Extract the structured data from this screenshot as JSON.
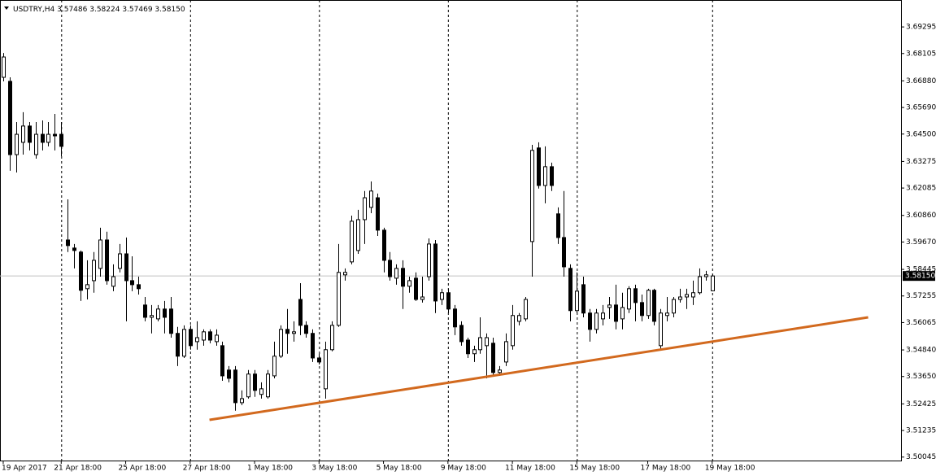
{
  "chart_data": {
    "type": "candlestick",
    "title": "USDTRY,H4",
    "last_labels": [
      "3.57486",
      "3.58224",
      "3.57469",
      "3.58150"
    ],
    "open": [
      3.6704,
      3.6686,
      3.6358,
      3.6413,
      3.6486,
      3.6358,
      3.6449,
      3.6413,
      3.6449,
      3.6449,
      3.5976,
      3.594,
      3.5922,
      3.5758,
      3.5794,
      3.5849,
      3.5976,
      3.5769,
      3.5849,
      3.5914,
      3.5794,
      3.5776,
      3.5685,
      3.563,
      3.5623,
      3.5667,
      3.5667,
      3.5558,
      3.5456,
      3.5576,
      3.5521,
      3.5528,
      3.5565,
      3.5521,
      3.5503,
      3.5394,
      3.5394,
      3.5248,
      3.5274,
      3.5376,
      3.5285,
      3.5274,
      3.5368,
      3.5456,
      3.5576,
      3.5558,
      3.571,
      3.5594,
      3.5558,
      3.5448,
      3.531,
      3.5485,
      3.5594,
      3.582,
      3.5878,
      3.5929,
      3.6067,
      3.6122,
      3.6165,
      3.602,
      3.5885,
      3.5805,
      3.5849,
      3.5769,
      3.5805,
      3.571,
      3.5812,
      3.5958,
      3.571,
      3.574,
      3.5667,
      3.5594,
      3.5528,
      3.5467,
      3.5485,
      3.5503,
      3.5514,
      3.5383,
      3.543,
      3.5503,
      3.5612,
      3.5623,
      3.5969,
      3.6388,
      3.622,
      3.6304,
      3.6093,
      3.5987,
      3.5849,
      3.566,
      3.5776,
      3.5649,
      3.5576,
      3.5623,
      3.5674,
      3.5685,
      3.5623,
      3.5667,
      3.5758,
      3.5696,
      3.5638,
      3.5751,
      3.5503,
      3.5638,
      3.5649,
      3.571,
      3.5721,
      3.5721,
      3.574,
      3.5812,
      3.57486
    ],
    "high": [
      3.6813,
      3.6704,
      3.6504,
      3.6548,
      3.6504,
      3.6504,
      3.6511,
      3.6504,
      3.654,
      3.6504,
      3.6158,
      3.5958,
      3.5929,
      3.5885,
      3.5922,
      3.6031,
      3.6013,
      3.5867,
      3.5958,
      3.5987,
      3.5903,
      3.5812,
      3.5721,
      3.5685,
      3.5685,
      3.5703,
      3.5721,
      3.5587,
      3.5594,
      3.5594,
      3.5612,
      3.5576,
      3.5576,
      3.5576,
      3.5521,
      3.5412,
      3.5412,
      3.5303,
      3.5394,
      3.5394,
      3.5339,
      3.5394,
      3.5521,
      3.5594,
      3.5667,
      3.5612,
      3.5783,
      3.5612,
      3.5576,
      3.5467,
      3.5521,
      3.5612,
      3.5958,
      3.5849,
      3.6085,
      3.6111,
      3.6195,
      3.6238,
      3.6184,
      3.6031,
      3.5922,
      3.5867,
      3.5885,
      3.5812,
      3.5831,
      3.5812,
      3.5983,
      3.5976,
      3.5758,
      3.5758,
      3.5685,
      3.5612,
      3.5539,
      3.5503,
      3.563,
      3.5558,
      3.5539,
      3.5412,
      3.5558,
      3.5685,
      3.5649,
      3.5721,
      3.6402,
      3.6413,
      3.6395,
      3.6322,
      3.6122,
      3.6195,
      3.5867,
      3.5831,
      3.5812,
      3.5667,
      3.5667,
      3.5685,
      3.5721,
      3.5776,
      3.574,
      3.5769,
      3.5776,
      3.5732,
      3.5758,
      3.5758,
      3.5667,
      3.5721,
      3.5721,
      3.5758,
      3.5758,
      3.5794,
      3.5849,
      3.5838,
      3.58224
    ],
    "low": [
      3.6686,
      3.6286,
      3.6278,
      3.6358,
      3.6377,
      3.634,
      3.6377,
      3.6395,
      3.6377,
      3.6351,
      3.5922,
      3.5849,
      3.5703,
      3.571,
      3.574,
      3.5812,
      3.5776,
      3.5747,
      3.5831,
      3.5612,
      3.5747,
      3.5732,
      3.5612,
      3.5558,
      3.5612,
      3.5558,
      3.5539,
      3.5412,
      3.5448,
      3.5485,
      3.5485,
      3.5503,
      3.5514,
      3.5503,
      3.5346,
      3.5339,
      3.5212,
      3.5237,
      3.5266,
      3.5274,
      3.5266,
      3.5266,
      3.5357,
      3.5448,
      3.5467,
      3.5521,
      3.555,
      3.5539,
      3.543,
      3.5419,
      3.5266,
      3.5478,
      3.5587,
      3.5794,
      3.5867,
      3.5914,
      3.5958,
      3.6096,
      3.5994,
      3.5831,
      3.5794,
      3.5776,
      3.5667,
      3.574,
      3.5703,
      3.5696,
      3.5794,
      3.5649,
      3.5685,
      3.5649,
      3.555,
      3.5503,
      3.5448,
      3.543,
      3.5467,
      3.5357,
      3.5368,
      3.5368,
      3.5412,
      3.5485,
      3.5594,
      3.5612,
      3.5812,
      3.6206,
      3.614,
      3.6195,
      3.5958,
      3.5812,
      3.5612,
      3.5649,
      3.563,
      3.5521,
      3.5558,
      3.5594,
      3.5623,
      3.5576,
      3.5576,
      3.5649,
      3.5612,
      3.5612,
      3.5623,
      3.5594,
      3.5485,
      3.5612,
      3.563,
      3.5696,
      3.5667,
      3.5685,
      3.5732,
      3.5794,
      3.57469
    ],
    "close": [
      3.6795,
      3.6358,
      3.6449,
      3.6486,
      3.6413,
      3.6449,
      3.6413,
      3.6449,
      3.6442,
      3.6395,
      3.5951,
      3.5929,
      3.5751,
      3.5776,
      3.5885,
      3.5976,
      3.5794,
      3.5812,
      3.5914,
      3.5794,
      3.5776,
      3.5758,
      3.563,
      3.5638,
      3.5667,
      3.563,
      3.5558,
      3.5456,
      3.5576,
      3.5503,
      3.5539,
      3.5565,
      3.5528,
      3.555,
      3.5368,
      3.5357,
      3.5248,
      3.5266,
      3.5376,
      3.5303,
      3.531,
      3.5376,
      3.5456,
      3.5576,
      3.5558,
      3.5565,
      3.5594,
      3.5558,
      3.5448,
      3.543,
      3.5485,
      3.5594,
      3.5831,
      3.5831,
      3.606,
      3.6067,
      3.6165,
      3.6195,
      3.602,
      3.5885,
      3.5812,
      3.5849,
      3.5769,
      3.5794,
      3.571,
      3.5721,
      3.5958,
      3.5703,
      3.574,
      3.5667,
      3.5587,
      3.5521,
      3.5467,
      3.5485,
      3.5539,
      3.5539,
      3.5383,
      3.5394,
      3.5521,
      3.5638,
      3.5638,
      3.571,
      3.6377,
      3.622,
      3.6304,
      3.622,
      3.5987,
      3.5856,
      3.566,
      3.5747,
      3.5649,
      3.5576,
      3.5649,
      3.5649,
      3.5685,
      3.5612,
      3.5674,
      3.5758,
      3.5696,
      3.5638,
      3.5751,
      3.5612,
      3.5649,
      3.5649,
      3.571,
      3.5721,
      3.5732,
      3.574,
      3.5812,
      3.582,
      3.5815
    ],
    "bull_color": "#ffffff",
    "bear_color": "#000000",
    "ylim": [
      3.4989,
      3.705
    ],
    "yticks": [
      3.69295,
      3.68105,
      {
        "value": 3.6688,
        "label": "3.66880"
      },
      {
        "value": 3.6569,
        "label": "3.65690"
      },
      {
        "value": 3.645,
        "label": "3.64500"
      },
      3.63275,
      3.62085,
      {
        "value": 3.6086,
        "label": "3.60860"
      },
      {
        "value": 3.5967,
        "label": "3.59670"
      },
      3.58445,
      3.57255,
      3.56065,
      {
        "value": 3.5484,
        "label": "3.54840"
      },
      {
        "value": 3.5365,
        "label": "3.53650"
      },
      3.52425,
      3.51235,
      3.50045
    ],
    "xlim": [
      -0.5,
      139.3
    ],
    "xticks": [
      {
        "value": 0,
        "label": "19 Apr 2017"
      },
      {
        "value": 9,
        "label": "21 Apr 18:00"
      },
      {
        "value": 19,
        "label": "25 Apr 18:00"
      },
      {
        "value": 29,
        "label": "27 Apr 18:00"
      },
      {
        "value": 39,
        "label": "1 May 18:00"
      },
      {
        "value": 49,
        "label": "3 May 18:00"
      },
      {
        "value": 59,
        "label": "5 May 18:00"
      },
      {
        "value": 69,
        "label": "9 May 18:00"
      },
      {
        "value": 79,
        "label": "11 May 18:00"
      },
      {
        "value": 89,
        "label": "15 May 18:00"
      },
      {
        "value": 100,
        "label": "17 May 18:00"
      },
      {
        "value": 110,
        "label": "19 May 18:00"
      }
    ],
    "trendline": {
      "x": [
        32,
        134.2
      ],
      "y": [
        3.5171,
        3.563
      ],
      "color": "#d2691e"
    },
    "price_line_color": "#c0c0c0"
  }
}
